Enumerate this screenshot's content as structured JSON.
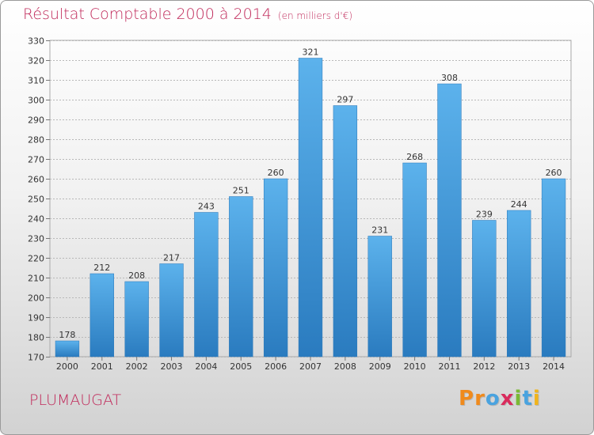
{
  "chart_data": {
    "type": "bar",
    "title": "Résultat Comptable 2000 à 2014",
    "subtitle": "(en milliers d'€)",
    "categories": [
      "2000",
      "2001",
      "2002",
      "2003",
      "2004",
      "2005",
      "2006",
      "2007",
      "2008",
      "2009",
      "2010",
      "2011",
      "2012",
      "2013",
      "2014"
    ],
    "values": [
      178,
      212,
      208,
      217,
      243,
      251,
      260,
      321,
      297,
      231,
      268,
      308,
      239,
      244,
      260
    ],
    "ylim": [
      170,
      330
    ],
    "ytick_step": 10,
    "grid": true,
    "bar_color": "#3a95d8",
    "bar_color_top": "#5cb2ec",
    "bar_color_bottom": "#2a7bbf"
  },
  "place_name": "PLUMAUGAT",
  "logo": {
    "letters": [
      {
        "ch": "P",
        "color": "#f08a1c"
      },
      {
        "ch": "r",
        "color": "#f08a1c"
      },
      {
        "ch": "o",
        "color": "#4aa3df"
      },
      {
        "ch": "x",
        "color": "#d92b5c"
      },
      {
        "ch": "i",
        "color": "#7ab934"
      },
      {
        "ch": "t",
        "color": "#4aa3df"
      },
      {
        "ch": "i",
        "color": "#f0b41c"
      }
    ]
  },
  "colors": {
    "accent": "#c0295a",
    "grid": "#b8b8b8"
  }
}
